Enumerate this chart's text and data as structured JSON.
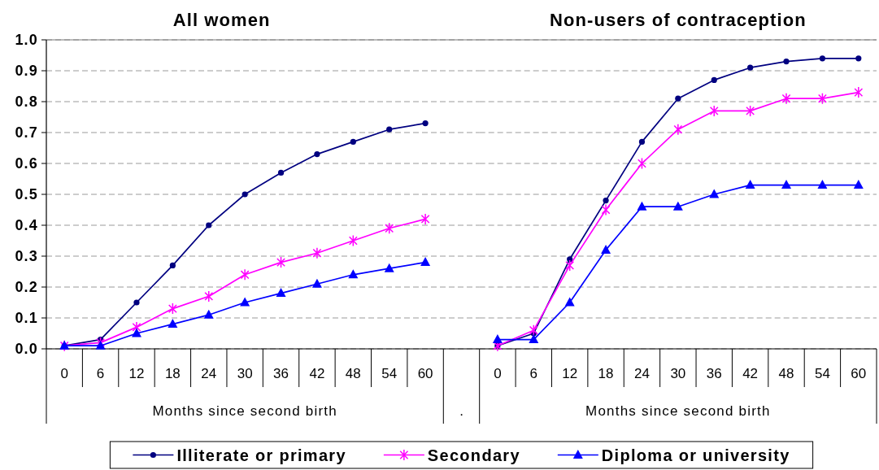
{
  "chart_data": [
    {
      "type": "line",
      "title": "All women",
      "xlabel": "Months since second birth",
      "categories": [
        "0",
        "6",
        "12",
        "18",
        "24",
        "30",
        "36",
        "42",
        "48",
        "54",
        "60"
      ],
      "ylim": [
        0,
        1
      ],
      "yticks": [
        {
          "value": 0,
          "label": "0.0"
        },
        {
          "value": 0.1,
          "label": "0.1"
        },
        {
          "value": 0.2,
          "label": "0.2"
        },
        {
          "value": 0.3,
          "label": "0.3"
        },
        {
          "value": 0.4,
          "label": "0.4"
        },
        {
          "value": 0.5,
          "label": "0.5"
        },
        {
          "value": 0.6,
          "label": "0.6"
        },
        {
          "value": 0.7,
          "label": "0.7"
        },
        {
          "value": 0.8,
          "label": "0.8"
        },
        {
          "value": 0.9,
          "label": "0.9"
        },
        {
          "value": 1,
          "label": "1.0"
        }
      ],
      "grid": "y",
      "legend": "bottom",
      "annotations": [
        "."
      ],
      "series": [
        {
          "name": "Illiterate or primary",
          "color": "#000080",
          "marker": "circle",
          "values": [
            0.01,
            0.03,
            0.15,
            0.27,
            0.4,
            0.5,
            0.57,
            0.63,
            0.67,
            0.71,
            0.73
          ]
        },
        {
          "name": "Secondary",
          "color": "#ff00ff",
          "marker": "cross",
          "values": [
            0.01,
            0.02,
            0.07,
            0.13,
            0.17,
            0.24,
            0.28,
            0.31,
            0.35,
            0.39,
            0.42
          ]
        },
        {
          "name": "Diploma or university",
          "color": "#0000ff",
          "marker": "triangle",
          "values": [
            0.01,
            0.01,
            0.05,
            0.08,
            0.11,
            0.15,
            0.18,
            0.21,
            0.24,
            0.26,
            0.28
          ]
        }
      ]
    },
    {
      "type": "line",
      "title": "Non-users of contraception",
      "xlabel": "Months since second birth",
      "categories": [
        "0",
        "6",
        "12",
        "18",
        "24",
        "30",
        "36",
        "42",
        "48",
        "54",
        "60"
      ],
      "ylim": [
        0,
        1
      ],
      "yticks": [
        0,
        0.1,
        0.2,
        0.3,
        0.4,
        0.5,
        0.6,
        0.7,
        0.8,
        0.9,
        1
      ],
      "grid": "y",
      "tick_labels": "x",
      "series": [
        {
          "color": "#000080",
          "marker": "circle",
          "values": [
            0.01,
            0.05,
            0.29,
            0.48,
            0.67,
            0.81,
            0.87,
            0.91,
            0.93,
            0.94,
            0.94
          ]
        },
        {
          "color": "#ff00ff",
          "marker": "cross",
          "values": [
            0.01,
            0.06,
            0.27,
            0.45,
            0.6,
            0.71,
            0.77,
            0.77,
            0.81,
            0.81,
            0.83
          ]
        },
        {
          "color": "#0000ff",
          "marker": "triangle",
          "values": [
            0.03,
            0.03,
            0.15,
            0.32,
            0.46,
            0.46,
            0.5,
            0.53,
            0.53,
            0.53,
            0.53
          ]
        }
      ]
    }
  ]
}
